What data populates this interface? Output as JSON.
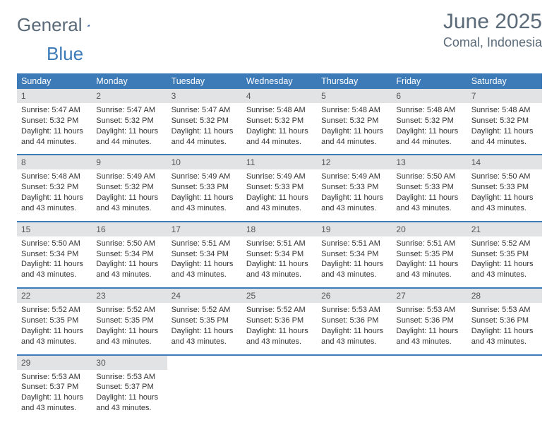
{
  "logo": {
    "word1": "General",
    "word2": "Blue"
  },
  "title": "June 2025",
  "location": "Comal, Indonesia",
  "colors": {
    "accent": "#3d7bb8",
    "header_text": "#ffffff",
    "daynum_bg": "#e1e3e5",
    "text": "#333333",
    "muted": "#5a6a78",
    "background": "#ffffff"
  },
  "typography": {
    "title_fontsize": 30,
    "location_fontsize": 18,
    "dayheader_fontsize": 12.5,
    "body_fontsize": 11
  },
  "day_names": [
    "Sunday",
    "Monday",
    "Tuesday",
    "Wednesday",
    "Thursday",
    "Friday",
    "Saturday"
  ],
  "labels": {
    "sunrise": "Sunrise:",
    "sunset": "Sunset:",
    "daylight": "Daylight:"
  },
  "days": [
    {
      "n": 1,
      "sunrise": "5:47 AM",
      "sunset": "5:32 PM",
      "daylight": "11 hours and 44 minutes."
    },
    {
      "n": 2,
      "sunrise": "5:47 AM",
      "sunset": "5:32 PM",
      "daylight": "11 hours and 44 minutes."
    },
    {
      "n": 3,
      "sunrise": "5:47 AM",
      "sunset": "5:32 PM",
      "daylight": "11 hours and 44 minutes."
    },
    {
      "n": 4,
      "sunrise": "5:48 AM",
      "sunset": "5:32 PM",
      "daylight": "11 hours and 44 minutes."
    },
    {
      "n": 5,
      "sunrise": "5:48 AM",
      "sunset": "5:32 PM",
      "daylight": "11 hours and 44 minutes."
    },
    {
      "n": 6,
      "sunrise": "5:48 AM",
      "sunset": "5:32 PM",
      "daylight": "11 hours and 44 minutes."
    },
    {
      "n": 7,
      "sunrise": "5:48 AM",
      "sunset": "5:32 PM",
      "daylight": "11 hours and 44 minutes."
    },
    {
      "n": 8,
      "sunrise": "5:48 AM",
      "sunset": "5:32 PM",
      "daylight": "11 hours and 43 minutes."
    },
    {
      "n": 9,
      "sunrise": "5:49 AM",
      "sunset": "5:32 PM",
      "daylight": "11 hours and 43 minutes."
    },
    {
      "n": 10,
      "sunrise": "5:49 AM",
      "sunset": "5:33 PM",
      "daylight": "11 hours and 43 minutes."
    },
    {
      "n": 11,
      "sunrise": "5:49 AM",
      "sunset": "5:33 PM",
      "daylight": "11 hours and 43 minutes."
    },
    {
      "n": 12,
      "sunrise": "5:49 AM",
      "sunset": "5:33 PM",
      "daylight": "11 hours and 43 minutes."
    },
    {
      "n": 13,
      "sunrise": "5:50 AM",
      "sunset": "5:33 PM",
      "daylight": "11 hours and 43 minutes."
    },
    {
      "n": 14,
      "sunrise": "5:50 AM",
      "sunset": "5:33 PM",
      "daylight": "11 hours and 43 minutes."
    },
    {
      "n": 15,
      "sunrise": "5:50 AM",
      "sunset": "5:34 PM",
      "daylight": "11 hours and 43 minutes."
    },
    {
      "n": 16,
      "sunrise": "5:50 AM",
      "sunset": "5:34 PM",
      "daylight": "11 hours and 43 minutes."
    },
    {
      "n": 17,
      "sunrise": "5:51 AM",
      "sunset": "5:34 PM",
      "daylight": "11 hours and 43 minutes."
    },
    {
      "n": 18,
      "sunrise": "5:51 AM",
      "sunset": "5:34 PM",
      "daylight": "11 hours and 43 minutes."
    },
    {
      "n": 19,
      "sunrise": "5:51 AM",
      "sunset": "5:34 PM",
      "daylight": "11 hours and 43 minutes."
    },
    {
      "n": 20,
      "sunrise": "5:51 AM",
      "sunset": "5:35 PM",
      "daylight": "11 hours and 43 minutes."
    },
    {
      "n": 21,
      "sunrise": "5:52 AM",
      "sunset": "5:35 PM",
      "daylight": "11 hours and 43 minutes."
    },
    {
      "n": 22,
      "sunrise": "5:52 AM",
      "sunset": "5:35 PM",
      "daylight": "11 hours and 43 minutes."
    },
    {
      "n": 23,
      "sunrise": "5:52 AM",
      "sunset": "5:35 PM",
      "daylight": "11 hours and 43 minutes."
    },
    {
      "n": 24,
      "sunrise": "5:52 AM",
      "sunset": "5:35 PM",
      "daylight": "11 hours and 43 minutes."
    },
    {
      "n": 25,
      "sunrise": "5:52 AM",
      "sunset": "5:36 PM",
      "daylight": "11 hours and 43 minutes."
    },
    {
      "n": 26,
      "sunrise": "5:53 AM",
      "sunset": "5:36 PM",
      "daylight": "11 hours and 43 minutes."
    },
    {
      "n": 27,
      "sunrise": "5:53 AM",
      "sunset": "5:36 PM",
      "daylight": "11 hours and 43 minutes."
    },
    {
      "n": 28,
      "sunrise": "5:53 AM",
      "sunset": "5:36 PM",
      "daylight": "11 hours and 43 minutes."
    },
    {
      "n": 29,
      "sunrise": "5:53 AM",
      "sunset": "5:37 PM",
      "daylight": "11 hours and 43 minutes."
    },
    {
      "n": 30,
      "sunrise": "5:53 AM",
      "sunset": "5:37 PM",
      "daylight": "11 hours and 43 minutes."
    }
  ],
  "grid": {
    "columns": 7,
    "first_day_column": 0,
    "weeks": 5
  }
}
